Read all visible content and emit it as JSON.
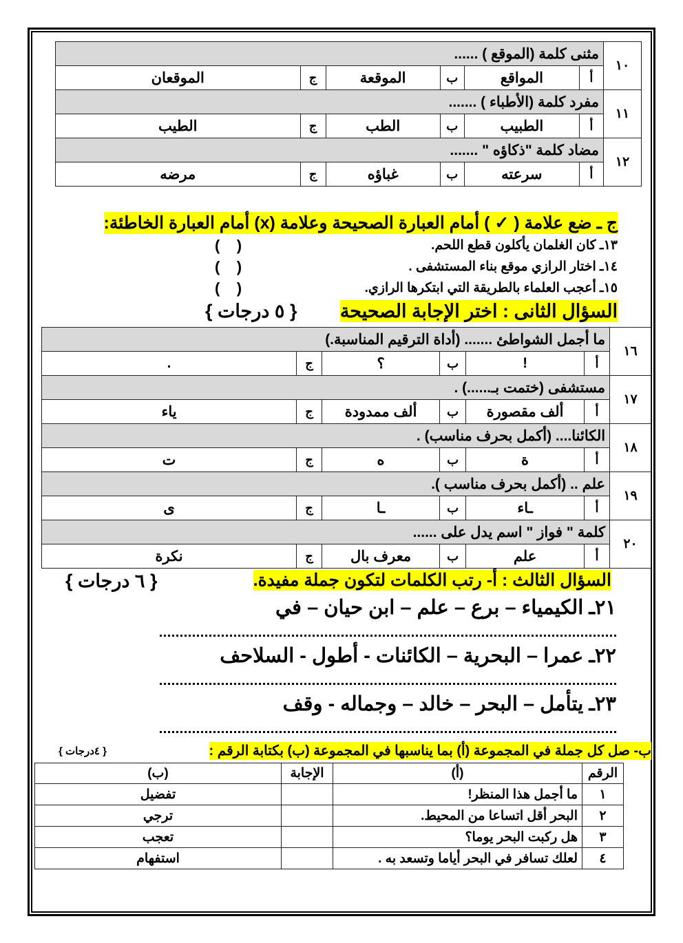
{
  "mcq_part1": [
    {
      "num": "١٠",
      "question": "مثنى كلمة (الموقع ) ......",
      "letters": [
        "أ",
        "ب",
        "ج"
      ],
      "options": [
        "المواقع",
        "الموقعة",
        "الموقعان"
      ]
    },
    {
      "num": "١١",
      "question": "مفرد كلمة (الأطباء ) .......",
      "letters": [
        "أ",
        "ب",
        "ج"
      ],
      "options": [
        "الطبيب",
        "الطب",
        "الطيب"
      ]
    },
    {
      "num": "١٢",
      "question": "مضاد كلمة \"ذكاؤه \" .......",
      "letters": [
        "أ",
        "ب",
        "ج"
      ],
      "options": [
        "سرعته",
        "غباؤه",
        "مرضه"
      ]
    }
  ],
  "true_false": {
    "heading": "ج ـ ضع علامة ( ✓ ) أمام العبارة الصحيحة وعلامة (x) أمام العبارة الخاطئة:",
    "items": [
      {
        "text": "١٣ـ كان الغلمان يأكلون قطع اللحم.",
        "answer": "(    )"
      },
      {
        "text": "١٤ـ اختار الرازي موقع بناء المستشفى .",
        "answer": "(    )"
      },
      {
        "text": "١٥ـ أعجب العلماء بالطريقة التي ابتكرها الرازي.",
        "answer": "(    )"
      }
    ]
  },
  "q2": {
    "heading": "السؤال الثانى : اختر الإجابة الصحيحة",
    "marks": "{ ٥ درجات }",
    "items": [
      {
        "num": "١٦",
        "question": "ما أجمل الشواطئ .......          (أداة الترقيم المناسبة.)",
        "letters": [
          "أ",
          "ب",
          "ج"
        ],
        "options": [
          "!",
          "؟",
          "."
        ]
      },
      {
        "num": "١٧",
        "question": "مستشفى (ختمت بـ......) .",
        "letters": [
          "أ",
          "ب",
          "ج"
        ],
        "options": [
          "ألف مقصورة",
          "ألف ممدودة",
          "ياء"
        ]
      },
      {
        "num": "١٨",
        "question": "الكائنا....      (أكمل بحرف مناسب) .",
        "letters": [
          "أ",
          "ب",
          "ج"
        ],
        "options": [
          "ة",
          "ه",
          "ت"
        ]
      },
      {
        "num": "١٩",
        "question": "علم ..        (أكمل بحرف مناسب ).",
        "letters": [
          "أ",
          "ب",
          "ج"
        ],
        "options": [
          "ـاء",
          "ـا",
          "ى"
        ]
      },
      {
        "num": "٢٠",
        "question": "كلمة \" فواز \" اسم يدل على ......",
        "letters": [
          "أ",
          "ب",
          "ج"
        ],
        "options": [
          "علم",
          "معرف بال",
          "نكرة"
        ]
      }
    ]
  },
  "q3": {
    "heading": "السؤال الثالث : أ- رتب الكلمات لتكون جملة مفيدة.",
    "marks": "{ ٦ درجات }",
    "items": [
      "٢١ـ الكيمياء – برع – علم – ابن حيان – في",
      "٢٢ـ عمرا – البحرية – الكائنات - أطول - السلاحف",
      "٢٣ـ يتأمل – البحر – خالد – وجماله - وقف"
    ]
  },
  "matching": {
    "heading": "ب- صل كل جملة في المجموعة (أ) بما يناسبها في المجموعة (ب) بكتابة الرقم :",
    "marks": "{ ٤درجات }",
    "headers": [
      "الرقم",
      "(أ)",
      "الإجابة",
      "(ب)"
    ],
    "rows": [
      {
        "num": "١",
        "a": "ما أجمل هذا المنظر!",
        "answer": "",
        "b": "تفضيل"
      },
      {
        "num": "٢",
        "a": "البحر أقل اتساعا من المحيط.",
        "answer": "",
        "b": "ترجي"
      },
      {
        "num": "٣",
        "a": "هل ركبت البحر يوما؟",
        "answer": "",
        "b": "تعجب"
      },
      {
        "num": "٤",
        "a": "لعلك تسافر في البحر أياما وتسعد به .",
        "answer": "",
        "b": "استفهام"
      }
    ]
  },
  "colors": {
    "highlight": "#ffff00",
    "question_row": "#d9d9d9"
  }
}
